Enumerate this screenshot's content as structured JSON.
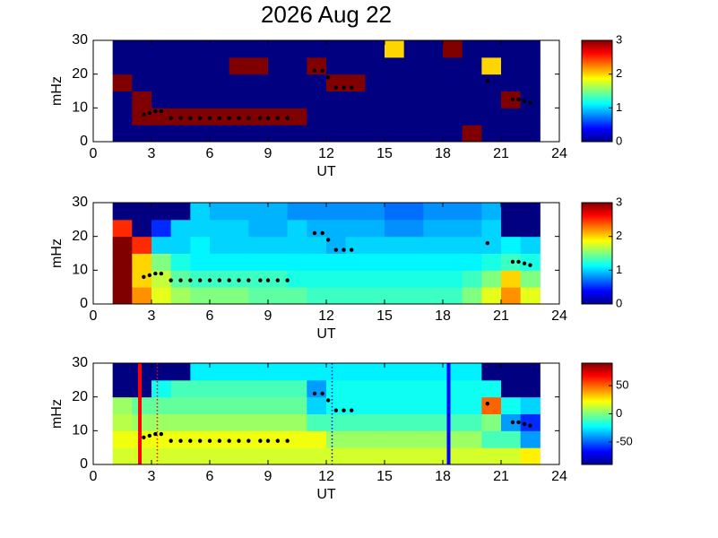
{
  "chart_data": [
    {
      "type": "heatmap",
      "title": "2026 Aug 22",
      "xlabel": "UT",
      "ylabel": "mHz",
      "xlim": [
        0,
        24
      ],
      "xticks": [
        0,
        3,
        6,
        9,
        12,
        15,
        18,
        21,
        24
      ],
      "ylim": [
        0,
        30
      ],
      "yticks": [
        0,
        10,
        20,
        30
      ],
      "clim": [
        0,
        3
      ],
      "cticks": [
        0,
        1,
        2,
        3
      ],
      "xbins": [
        1,
        2,
        3,
        4,
        5,
        6,
        7,
        8,
        9,
        10,
        11,
        12,
        13,
        14,
        15,
        16,
        17,
        18,
        19,
        20,
        21,
        22,
        23
      ],
      "ybins": [
        0,
        5,
        10,
        15,
        20,
        25,
        30
      ],
      "z": [
        [
          0,
          0,
          0,
          0,
          0,
          0,
          0,
          0,
          0,
          0,
          0,
          0,
          0,
          0,
          0,
          0,
          0,
          0,
          3,
          0,
          0,
          0
        ],
        [
          0,
          3,
          3,
          3,
          3,
          3,
          3,
          3,
          3,
          3,
          0,
          0,
          0,
          0,
          0,
          0,
          0,
          0,
          0,
          0,
          0,
          0
        ],
        [
          0,
          3,
          0,
          0,
          0,
          0,
          0,
          0,
          0,
          0,
          0,
          0,
          0,
          0,
          0,
          0,
          0,
          0,
          0,
          0,
          3,
          0
        ],
        [
          3,
          0,
          0,
          0,
          0,
          0,
          0,
          0,
          0,
          0,
          0,
          3,
          3,
          0,
          0,
          0,
          0,
          0,
          0,
          0,
          0,
          0
        ],
        [
          0,
          0,
          0,
          0,
          0,
          0,
          3,
          3,
          0,
          0,
          3,
          0,
          0,
          0,
          0,
          0,
          0,
          0,
          0,
          2,
          0,
          0
        ],
        [
          0,
          0,
          0,
          0,
          0,
          0,
          0,
          0,
          0,
          0,
          0,
          0,
          0,
          0,
          2,
          0,
          0,
          3,
          0,
          0,
          0,
          0
        ]
      ],
      "markers": {
        "color": "#000000",
        "x": [
          2.6,
          2.9,
          3.2,
          3.5,
          4.0,
          4.5,
          5.0,
          5.5,
          6.0,
          6.5,
          7.0,
          7.5,
          8.0,
          8.6,
          9.0,
          9.5,
          10.0,
          11.4,
          11.8,
          12.1,
          12.5,
          12.9,
          13.3,
          20.3,
          21.6,
          21.9,
          22.2,
          22.5
        ],
        "y": [
          8,
          8.5,
          9,
          9,
          7,
          7,
          7,
          7,
          7,
          7,
          7,
          7,
          7,
          7,
          7,
          7,
          7,
          21,
          21,
          19,
          16,
          16,
          16,
          18,
          12.5,
          12.5,
          12,
          11.5
        ]
      }
    },
    {
      "type": "heatmap",
      "xlabel": "UT",
      "ylabel": "mHz",
      "xlim": [
        0,
        24
      ],
      "xticks": [
        0,
        3,
        6,
        9,
        12,
        15,
        18,
        21,
        24
      ],
      "ylim": [
        0,
        30
      ],
      "yticks": [
        0,
        10,
        20,
        30
      ],
      "clim": [
        0,
        3
      ],
      "cticks": [
        0,
        1,
        2,
        3
      ],
      "xbins": [
        1,
        2,
        3,
        4,
        5,
        6,
        7,
        8,
        9,
        10,
        11,
        12,
        13,
        14,
        15,
        16,
        17,
        18,
        19,
        20,
        21,
        22,
        23
      ],
      "ybins": [
        0,
        5,
        10,
        15,
        20,
        25,
        30
      ],
      "z": [
        [
          3,
          2.2,
          1.8,
          1.6,
          1.5,
          1.5,
          1.5,
          1.4,
          1.4,
          1.4,
          1.3,
          1.3,
          1.3,
          1.3,
          1.3,
          1.3,
          1.3,
          1.3,
          1.5,
          1.8,
          2.2,
          1.8
        ],
        [
          3,
          2,
          1.7,
          1.4,
          1.3,
          1.3,
          1.3,
          1.3,
          1.3,
          1.2,
          1.2,
          1.2,
          1.2,
          1.2,
          1.2,
          1.2,
          1.2,
          1.2,
          1.3,
          1.5,
          2,
          1.5
        ],
        [
          3,
          2,
          1.5,
          1.2,
          1.1,
          1.1,
          1.1,
          1.1,
          1.1,
          1.1,
          1.1,
          1.1,
          1.1,
          1.1,
          1.1,
          1.1,
          1.1,
          1.1,
          1.1,
          1.2,
          1.3,
          1.2
        ],
        [
          3,
          2.5,
          1,
          1,
          1.1,
          1,
          1,
          1,
          1,
          1,
          1,
          0.9,
          1,
          1,
          1,
          1,
          1,
          1,
          1,
          1,
          1.1,
          1
        ],
        [
          2.5,
          0,
          0.5,
          1,
          1,
          1,
          1,
          0.9,
          0.9,
          1,
          0.9,
          0.9,
          0.9,
          0.9,
          0.8,
          0.8,
          0.9,
          0.9,
          0.9,
          1,
          0,
          0
        ],
        [
          0,
          0,
          0,
          0,
          1,
          0.9,
          0.9,
          0.9,
          0.9,
          0.8,
          0.8,
          0.8,
          0.8,
          0.8,
          0.7,
          0.7,
          0.8,
          0.8,
          0.8,
          0.9,
          0,
          0
        ]
      ],
      "markers": {
        "color": "#000000",
        "x": [
          2.6,
          2.9,
          3.2,
          3.5,
          4.0,
          4.5,
          5.0,
          5.5,
          6.0,
          6.5,
          7.0,
          7.5,
          8.0,
          8.6,
          9.0,
          9.5,
          10.0,
          11.4,
          11.8,
          12.1,
          12.5,
          12.9,
          13.3,
          20.3,
          21.6,
          21.9,
          22.2,
          22.5
        ],
        "y": [
          8,
          8.5,
          9,
          9,
          7,
          7,
          7,
          7,
          7,
          7,
          7,
          7,
          7,
          7,
          7,
          7,
          7,
          21,
          21,
          19,
          16,
          16,
          16,
          18,
          12.5,
          12.5,
          12,
          11.5
        ]
      }
    },
    {
      "type": "heatmap",
      "xlabel": "UT",
      "ylabel": "mHz",
      "xlim": [
        0,
        24
      ],
      "xticks": [
        0,
        3,
        6,
        9,
        12,
        15,
        18,
        21,
        24
      ],
      "ylim": [
        0,
        30
      ],
      "yticks": [
        0,
        10,
        20,
        30
      ],
      "clim": [
        -90,
        90
      ],
      "cticks": [
        -50,
        0,
        50
      ],
      "xbins": [
        1,
        2,
        3,
        4,
        5,
        6,
        7,
        8,
        9,
        10,
        11,
        12,
        13,
        14,
        15,
        16,
        17,
        18,
        19,
        20,
        21,
        22,
        23
      ],
      "ybins": [
        0,
        5,
        10,
        15,
        20,
        25,
        30
      ],
      "z": [
        [
          15,
          15,
          15,
          15,
          15,
          15,
          15,
          15,
          15,
          15,
          15,
          15,
          15,
          15,
          15,
          15,
          15,
          15,
          15,
          15,
          15,
          25
        ],
        [
          20,
          20,
          20,
          20,
          20,
          20,
          20,
          20,
          20,
          20,
          20,
          5,
          5,
          5,
          5,
          5,
          5,
          5,
          5,
          -10,
          -10,
          -40
        ],
        [
          10,
          5,
          5,
          5,
          5,
          5,
          5,
          5,
          5,
          5,
          -10,
          -10,
          -10,
          -10,
          -10,
          -10,
          -10,
          -10,
          -10,
          0,
          -40,
          -60
        ],
        [
          5,
          -5,
          -5,
          -5,
          -5,
          -5,
          -5,
          -5,
          -5,
          -5,
          -30,
          -20,
          -20,
          -20,
          -20,
          -20,
          -20,
          -20,
          -20,
          50,
          -20,
          -30
        ],
        [
          -90,
          -90,
          -20,
          -10,
          -10,
          -10,
          -10,
          -10,
          -10,
          -10,
          -40,
          -20,
          -20,
          -20,
          -20,
          -20,
          -20,
          -20,
          -20,
          -20,
          -90,
          -90
        ],
        [
          -90,
          -90,
          -90,
          -90,
          -25,
          -25,
          -25,
          -25,
          -25,
          -25,
          -25,
          -25,
          -25,
          -25,
          -25,
          -25,
          -25,
          -25,
          -25,
          -90,
          -90,
          -90
        ]
      ],
      "markers": {
        "color": "#000000",
        "x": [
          2.6,
          2.9,
          3.2,
          3.5,
          4.0,
          4.5,
          5.0,
          5.5,
          6.0,
          6.5,
          7.0,
          7.5,
          8.0,
          8.6,
          9.0,
          9.5,
          10.0,
          11.4,
          11.8,
          12.1,
          12.5,
          12.9,
          13.3,
          20.3,
          21.6,
          21.9,
          22.2,
          22.5
        ],
        "y": [
          8,
          8.5,
          9,
          9,
          7,
          7,
          7,
          7,
          7,
          7,
          7,
          7,
          7,
          7,
          7,
          7,
          7,
          21,
          21,
          19,
          16,
          16,
          16,
          18,
          12.5,
          12.5,
          12,
          11.5
        ]
      },
      "vlines": [
        {
          "x": 2.4,
          "color": "#ff0000",
          "style": "solid"
        },
        {
          "x": 3.3,
          "color": "#ff0000",
          "style": "dotted"
        },
        {
          "x": 12.3,
          "color": "#0000ff",
          "style": "dotted"
        },
        {
          "x": 18.3,
          "color": "#0000ff",
          "style": "solid"
        }
      ]
    }
  ]
}
